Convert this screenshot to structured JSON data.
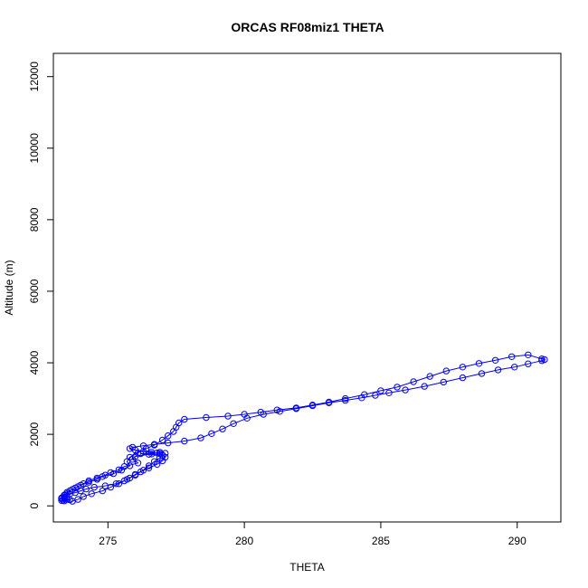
{
  "chart_data": {
    "type": "scatter",
    "title": "ORCAS RF08miz1 THETA",
    "xlabel": "THETA",
    "ylabel": "Altitude (m)",
    "xlim": [
      273.0,
      291.6
    ],
    "ylim": [
      -450,
      12650
    ],
    "xticks": [
      275,
      280,
      285,
      290
    ],
    "yticks": [
      0,
      2000,
      4000,
      6000,
      8000,
      10000,
      12000
    ],
    "colors": {
      "series": "#0000ff",
      "axis": "#000000"
    },
    "grid": false,
    "series": [
      {
        "marker": "open-circle",
        "connect": "line",
        "points": [
          [
            273.3,
            200
          ],
          [
            273.4,
            230
          ],
          [
            273.5,
            260
          ],
          [
            273.4,
            300
          ],
          [
            273.6,
            330
          ],
          [
            273.8,
            370
          ],
          [
            274.0,
            420
          ],
          [
            274.2,
            470
          ],
          [
            274.5,
            520
          ],
          [
            274.9,
            560
          ],
          [
            275.3,
            620
          ],
          [
            275.6,
            700
          ],
          [
            275.8,
            780
          ],
          [
            276.0,
            860
          ],
          [
            276.2,
            950
          ],
          [
            276.5,
            1060
          ],
          [
            276.8,
            1160
          ],
          [
            277.0,
            1260
          ],
          [
            277.1,
            1360
          ],
          [
            276.9,
            1460
          ],
          [
            276.6,
            1500
          ],
          [
            276.3,
            1520
          ],
          [
            276.0,
            1560
          ],
          [
            275.8,
            1600
          ],
          [
            275.9,
            1640
          ],
          [
            276.3,
            1680
          ],
          [
            276.7,
            1720
          ],
          [
            277.2,
            1760
          ],
          [
            277.8,
            1810
          ],
          [
            278.4,
            1900
          ],
          [
            278.8,
            2020
          ],
          [
            279.2,
            2150
          ],
          [
            279.6,
            2300
          ],
          [
            280.1,
            2450
          ],
          [
            280.7,
            2560
          ],
          [
            281.3,
            2640
          ],
          [
            281.9,
            2720
          ],
          [
            282.5,
            2800
          ],
          [
            283.1,
            2880
          ],
          [
            283.7,
            2950
          ],
          [
            284.3,
            3020
          ],
          [
            284.8,
            3090
          ],
          [
            285.3,
            3160
          ],
          [
            285.9,
            3240
          ],
          [
            286.6,
            3340
          ],
          [
            287.3,
            3460
          ],
          [
            288.0,
            3580
          ],
          [
            288.7,
            3700
          ],
          [
            289.3,
            3800
          ],
          [
            289.9,
            3880
          ],
          [
            290.4,
            3970
          ],
          [
            290.9,
            4060
          ],
          [
            291.0,
            4090
          ],
          [
            290.9,
            4110
          ],
          [
            290.4,
            4220
          ],
          [
            289.8,
            4170
          ],
          [
            289.2,
            4070
          ],
          [
            288.6,
            3980
          ],
          [
            288.0,
            3880
          ],
          [
            287.4,
            3770
          ],
          [
            286.8,
            3620
          ],
          [
            286.2,
            3470
          ],
          [
            285.6,
            3320
          ],
          [
            285.0,
            3220
          ],
          [
            284.4,
            3110
          ],
          [
            283.7,
            3000
          ],
          [
            283.1,
            2900
          ],
          [
            282.5,
            2820
          ],
          [
            281.9,
            2740
          ],
          [
            281.2,
            2680
          ],
          [
            280.6,
            2620
          ],
          [
            280.0,
            2560
          ],
          [
            279.4,
            2510
          ],
          [
            278.6,
            2470
          ],
          [
            277.8,
            2420
          ],
          [
            277.6,
            2320
          ],
          [
            277.5,
            2200
          ],
          [
            277.4,
            2080
          ],
          [
            277.2,
            1960
          ],
          [
            277.0,
            1840
          ],
          [
            276.7,
            1700
          ],
          [
            276.4,
            1600
          ],
          [
            276.1,
            1480
          ],
          [
            275.8,
            1360
          ],
          [
            275.7,
            1240
          ],
          [
            275.8,
            1120
          ],
          [
            275.5,
            1000
          ],
          [
            275.2,
            900
          ],
          [
            274.8,
            820
          ],
          [
            274.6,
            740
          ],
          [
            274.3,
            660
          ],
          [
            274.0,
            580
          ],
          [
            273.8,
            500
          ],
          [
            273.6,
            420
          ],
          [
            273.5,
            340
          ],
          [
            273.4,
            260
          ],
          [
            273.4,
            200
          ],
          [
            273.5,
            180
          ],
          [
            273.6,
            170
          ],
          [
            273.3,
            150
          ],
          [
            273.4,
            140
          ],
          [
            273.7,
            130
          ],
          [
            273.9,
            180
          ],
          [
            274.1,
            260
          ],
          [
            274.4,
            340
          ],
          [
            274.8,
            420
          ],
          [
            275.1,
            520
          ],
          [
            275.4,
            620
          ],
          [
            275.7,
            740
          ],
          [
            276.0,
            880
          ],
          [
            276.3,
            1000
          ],
          [
            276.5,
            1120
          ],
          [
            276.7,
            1240
          ],
          [
            276.9,
            1340
          ],
          [
            277.0,
            1420
          ],
          [
            276.6,
            1450
          ],
          [
            276.2,
            1460
          ],
          [
            276.8,
            1480
          ],
          [
            277.1,
            1470
          ],
          [
            276.9,
            1500
          ],
          [
            276.5,
            1440
          ],
          [
            276.0,
            1380
          ],
          [
            275.9,
            1300
          ],
          [
            276.1,
            1200
          ],
          [
            275.6,
            1100
          ],
          [
            275.4,
            1010
          ],
          [
            275.1,
            930
          ],
          [
            274.9,
            860
          ],
          [
            274.6,
            780
          ],
          [
            274.3,
            700
          ],
          [
            274.1,
            620
          ],
          [
            273.9,
            540
          ],
          [
            273.7,
            460
          ],
          [
            273.5,
            380
          ],
          [
            273.4,
            300
          ],
          [
            273.3,
            220
          ],
          [
            273.35,
            160
          ]
        ]
      }
    ]
  }
}
